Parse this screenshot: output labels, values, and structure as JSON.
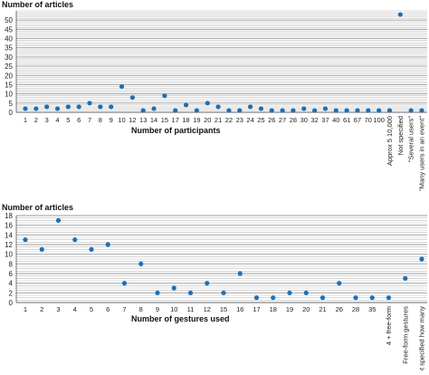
{
  "chart_data": [
    {
      "type": "scatter",
      "ylabel": "Number of articles",
      "xlabel": "Number of participants",
      "ylim": [
        0,
        55
      ],
      "yticks": [
        0,
        5,
        10,
        15,
        20,
        25,
        30,
        35,
        40,
        45,
        50
      ],
      "grid": true,
      "marker_color": "#1f6fb4",
      "categories": [
        "1",
        "2",
        "3",
        "4",
        "5",
        "6",
        "7",
        "8",
        "9",
        "10",
        "12",
        "13",
        "14",
        "15",
        "17",
        "18",
        "19",
        "20",
        "21",
        "22",
        "23",
        "24",
        "25",
        "26",
        "27",
        "28",
        "30",
        "32",
        "37",
        "40",
        "61",
        "67",
        "70",
        "100",
        "Approx 5 10,000",
        "Not specified",
        "\"Several users\"",
        "\"Many users in an event\""
      ],
      "values": [
        2,
        2,
        3,
        2,
        3,
        3,
        5,
        3,
        3,
        14,
        8,
        1,
        2,
        9,
        1,
        4,
        1,
        5,
        3,
        1,
        1,
        3,
        2,
        1,
        1,
        1,
        2,
        1,
        2,
        1,
        1,
        1,
        1,
        1,
        1,
        53,
        1,
        1
      ]
    },
    {
      "type": "scatter",
      "ylabel": "Number of articles",
      "xlabel": "Number of gestures used",
      "ylim": [
        0,
        18
      ],
      "yticks": [
        0,
        2,
        4,
        6,
        8,
        10,
        12,
        14,
        16,
        18
      ],
      "grid": true,
      "marker_color": "#1f6fb4",
      "categories": [
        "1",
        "2",
        "3",
        "4",
        "5",
        "6",
        "7",
        "8",
        "9",
        "10",
        "11",
        "12",
        "15",
        "16",
        "17",
        "18",
        "19",
        "20",
        "21",
        "26",
        "28",
        "35",
        "4 + free-form",
        "Free-form gestures",
        "Not specified how many"
      ],
      "values": [
        13,
        11,
        17,
        13,
        11,
        12,
        4,
        8,
        2,
        3,
        2,
        4,
        2,
        6,
        1,
        1,
        2,
        2,
        1,
        4,
        1,
        1,
        1,
        5,
        9
      ]
    }
  ]
}
